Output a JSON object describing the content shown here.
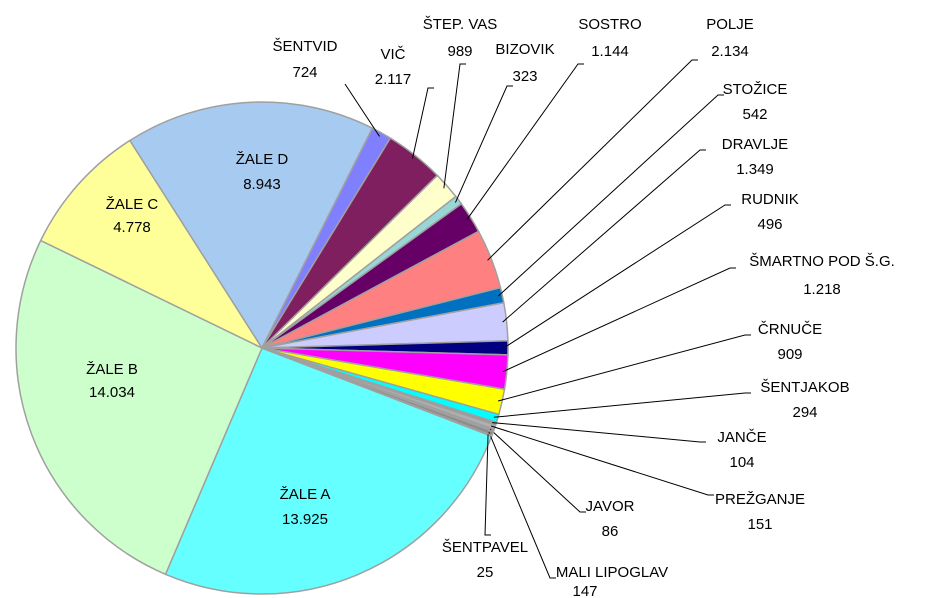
{
  "chart_data": {
    "type": "pie",
    "categories": [
      "ŽALE A",
      "ŽALE B",
      "ŽALE C",
      "ŽALE D",
      "ŠENTVID",
      "VIČ",
      "ŠTEP. VAS",
      "BIZOVIK",
      "SOSTRO",
      "POLJE",
      "STOŽICE",
      "DRAVLJE",
      "RUDNIK",
      "ŠMARTNO POD Š.G.",
      "ČRNUČE",
      "ŠENTJAKOB",
      "JANČE",
      "PREŽGANJE",
      "JAVOR",
      "MALI LIPOGLAV",
      "ŠENTPAVEL"
    ],
    "values": [
      13925,
      14034,
      4778,
      8943,
      724,
      2117,
      989,
      323,
      1144,
      2134,
      542,
      1349,
      496,
      1218,
      909,
      294,
      104,
      151,
      86,
      147,
      25
    ],
    "value_labels": [
      "13.925",
      "14.034",
      "4.778",
      "8.943",
      "724",
      "2.117",
      "989",
      "323",
      "1.144",
      "2.134",
      "542",
      "1.349",
      "496",
      "1.218",
      "909",
      "294",
      "104",
      "151",
      "86",
      "147",
      "25"
    ],
    "colors": [
      "#66ffff",
      "#ccffcc",
      "#ffff99",
      "#a6caf0",
      "#8080ff",
      "#7f1f5f",
      "#ffffcc",
      "#99d6d6",
      "#660066",
      "#ff8080",
      "#0070c0",
      "#ccccff",
      "#000080",
      "#ff00ff",
      "#ffff00",
      "#00ffff",
      "#999999",
      "#b0b0b0",
      "#a0a0a0",
      "#8c8c8c",
      "#c0c0c0"
    ]
  }
}
